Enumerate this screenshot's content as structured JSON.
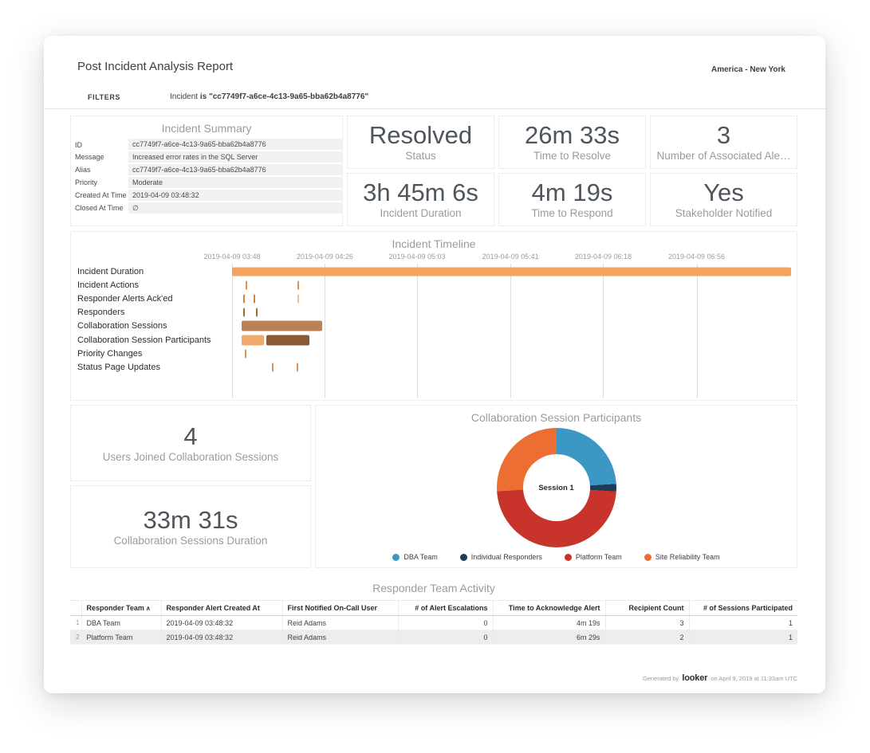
{
  "header": {
    "title": "Post Incident Analysis Report",
    "timezone": "America - New York"
  },
  "filters": {
    "label": "FILTERS",
    "field": "Incident",
    "value": "is \"cc7749f7-a6ce-4c13-9a65-bba62b4a8776\""
  },
  "summary": {
    "title": "Incident Summary",
    "rows": [
      {
        "label": "ID",
        "value": "cc7749f7-a6ce-4c13-9a65-bba62b4a8776"
      },
      {
        "label": "Message",
        "value": "Increased error rates in the SQL Server"
      },
      {
        "label": "Alias",
        "value": "cc7749f7-a6ce-4c13-9a65-bba62b4a8776"
      },
      {
        "label": "Priority",
        "value": "Moderate"
      },
      {
        "label": "Created At Time",
        "value": "2019-04-09 03:48:32"
      },
      {
        "label": "Closed At Time",
        "value": "∅"
      }
    ]
  },
  "kpis": [
    {
      "value": "Resolved",
      "label": "Status"
    },
    {
      "value": "26m 33s",
      "label": "Time to Resolve"
    },
    {
      "value": "3",
      "label": "Number of Associated Ale…"
    },
    {
      "value": "3h 45m 6s",
      "label": "Incident Duration"
    },
    {
      "value": "4m 19s",
      "label": "Time to Respond"
    },
    {
      "value": "Yes",
      "label": "Stakeholder Notified"
    }
  ],
  "timeline": {
    "title": "Incident Timeline",
    "axis": [
      {
        "label": "2019-04-09 03:48",
        "pos": 0
      },
      {
        "label": "2019-04-09 04:26",
        "pos": 0.166
      },
      {
        "label": "2019-04-09 05:03",
        "pos": 0.331
      },
      {
        "label": "2019-04-09 05:41",
        "pos": 0.498
      },
      {
        "label": "2019-04-09 06:18",
        "pos": 0.664
      },
      {
        "label": "2019-04-09 06:56",
        "pos": 0.831
      }
    ],
    "rows": [
      {
        "label": "Incident Duration",
        "bars": [
          {
            "start": 0,
            "width": 1.0,
            "color": "#f2a360",
            "h": 11
          }
        ]
      },
      {
        "label": "Incident Actions",
        "bars": [
          {
            "start": 0.024,
            "width": 0.003,
            "color": "#e09050",
            "h": 11
          },
          {
            "start": 0.117,
            "width": 0.003,
            "color": "#e09050",
            "h": 11
          }
        ]
      },
      {
        "label": "Responder Alerts Ack'ed",
        "bars": [
          {
            "start": 0.02,
            "width": 0.003,
            "color": "#c8853f",
            "h": 11
          },
          {
            "start": 0.039,
            "width": 0.003,
            "color": "#c8853f",
            "h": 11
          },
          {
            "start": 0.117,
            "width": 0.003,
            "color": "#eec18e",
            "h": 11
          }
        ]
      },
      {
        "label": "Responders",
        "bars": [
          {
            "start": 0.02,
            "width": 0.003,
            "color": "#a96a31",
            "h": 11
          },
          {
            "start": 0.043,
            "width": 0.003,
            "color": "#a96a31",
            "h": 11
          }
        ]
      },
      {
        "label": "Collaboration Sessions",
        "bars": [
          {
            "start": 0.017,
            "width": 0.144,
            "color": "#bb8257",
            "h": 13
          }
        ]
      },
      {
        "label": "Collaboration Session Participants",
        "bars": [
          {
            "start": 0.017,
            "width": 0.04,
            "color": "#f0aa6c",
            "h": 13
          },
          {
            "start": 0.062,
            "width": 0.077,
            "color": "#8a5a35",
            "h": 13
          }
        ]
      },
      {
        "label": "Priority Changes",
        "bars": [
          {
            "start": 0.023,
            "width": 0.003,
            "color": "#e09050",
            "h": 11
          }
        ]
      },
      {
        "label": "Status Page Updates",
        "bars": [
          {
            "start": 0.071,
            "width": 0.003,
            "color": "#e09050",
            "h": 11
          },
          {
            "start": 0.116,
            "width": 0.003,
            "color": "#e09050",
            "h": 11
          }
        ]
      }
    ]
  },
  "session_kpis": [
    {
      "value": "4",
      "label": "Users Joined Collaboration Sessions"
    },
    {
      "value": "33m 31s",
      "label": "Collaboration Sessions Duration"
    }
  ],
  "donut": {
    "title": "Collaboration Session Participants",
    "center_label": "Session 1",
    "slices": [
      {
        "label": "DBA Team",
        "color": "#3c97c4",
        "pct": 24
      },
      {
        "label": "Individual Responders",
        "color": "#1e3d54",
        "pct": 2
      },
      {
        "label": "Platform Team",
        "color": "#c8342b",
        "pct": 48
      },
      {
        "label": "Site Reliability Team",
        "color": "#ed6e33",
        "pct": 26
      }
    ]
  },
  "table": {
    "title": "Responder Team Activity",
    "columns": [
      {
        "label": "Responder Team",
        "align": "left",
        "sort": "asc"
      },
      {
        "label": "Responder Alert Created At",
        "align": "left"
      },
      {
        "label": "First Notified On-Call User",
        "align": "left"
      },
      {
        "label": "# of Alert Escalations",
        "align": "right"
      },
      {
        "label": "Time to Acknowledge Alert",
        "align": "right"
      },
      {
        "label": "Recipient Count",
        "align": "right"
      },
      {
        "label": "# of Sessions Participated",
        "align": "right"
      }
    ],
    "rows": [
      [
        "DBA Team",
        "2019-04-09 03:48:32",
        "Reid Adams",
        "0",
        "4m 19s",
        "3",
        "1"
      ],
      [
        "Platform Team",
        "2019-04-09 03:48:32",
        "Reid Adams",
        "0",
        "6m 29s",
        "2",
        "1"
      ]
    ]
  },
  "footer": {
    "prefix": "Generated by",
    "brand": "looker",
    "suffix": "on April 9, 2019 at 11:33am UTC"
  },
  "chart_data": [
    {
      "type": "bar",
      "subtype": "timeline-gantt",
      "title": "Incident Timeline",
      "x_ticks": [
        "2019-04-09 03:48",
        "2019-04-09 04:26",
        "2019-04-09 05:03",
        "2019-04-09 05:41",
        "2019-04-09 06:18",
        "2019-04-09 06:56"
      ],
      "x_range": [
        "2019-04-09 03:48",
        "2019-04-09 07:34"
      ],
      "categories": [
        "Incident Duration",
        "Incident Actions",
        "Responder Alerts Ack'ed",
        "Responders",
        "Collaboration Sessions",
        "Collaboration Session Participants",
        "Priority Changes",
        "Status Page Updates"
      ],
      "series": [
        {
          "category": "Incident Duration",
          "spans": [
            [
              "2019-04-09 03:48",
              "2019-04-09 07:33"
            ]
          ]
        },
        {
          "category": "Incident Actions",
          "events": [
            "~03:54",
            "~04:15"
          ]
        },
        {
          "category": "Responder Alerts Ack'ed",
          "events": [
            "~03:53",
            "~03:57",
            "~04:15"
          ]
        },
        {
          "category": "Responders",
          "events": [
            "~03:53",
            "~03:58"
          ]
        },
        {
          "category": "Collaboration Sessions",
          "spans": [
            [
              "~03:52",
              "~04:25"
            ]
          ]
        },
        {
          "category": "Collaboration Session Participants",
          "spans": [
            [
              "~03:52",
              "~04:01"
            ],
            [
              "~04:02",
              "~04:20"
            ]
          ]
        },
        {
          "category": "Priority Changes",
          "events": [
            "~03:53"
          ]
        },
        {
          "category": "Status Page Updates",
          "events": [
            "~04:04",
            "~04:15"
          ]
        }
      ]
    },
    {
      "type": "pie",
      "title": "Collaboration Session Participants",
      "center_label": "Session 1",
      "labels": [
        "DBA Team",
        "Individual Responders",
        "Platform Team",
        "Site Reliability Team"
      ],
      "values": [
        24,
        2,
        48,
        26
      ],
      "unit": "percent-approx",
      "colors": [
        "#3c97c4",
        "#1e3d54",
        "#c8342b",
        "#ed6e33"
      ],
      "legend_position": "bottom"
    },
    {
      "type": "table",
      "title": "Responder Team Activity",
      "columns": [
        "Responder Team",
        "Responder Alert Created At",
        "First Notified On-Call User",
        "# of Alert Escalations",
        "Time to Acknowledge Alert",
        "Recipient Count",
        "# of Sessions Participated"
      ],
      "rows": [
        [
          "DBA Team",
          "2019-04-09 03:48:32",
          "Reid Adams",
          0,
          "4m 19s",
          3,
          1
        ],
        [
          "Platform Team",
          "2019-04-09 03:48:32",
          "Reid Adams",
          0,
          "6m 29s",
          2,
          1
        ]
      ]
    }
  ]
}
